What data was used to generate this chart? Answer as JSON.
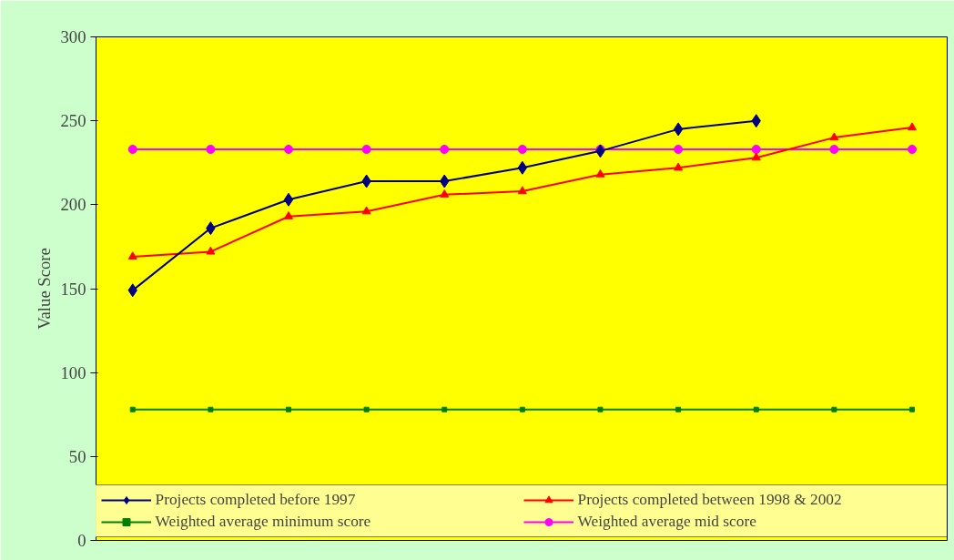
{
  "chart_data": {
    "type": "line",
    "ylabel": "Value Score",
    "categories": [
      null,
      null,
      null,
      null,
      null,
      null,
      null,
      null,
      null,
      null,
      null
    ],
    "series": [
      {
        "name": "Projects completed before 1997",
        "color": "#000080",
        "marker": "diamond",
        "values": [
          149,
          186,
          203,
          214,
          214,
          222,
          232,
          245,
          250,
          null,
          null
        ]
      },
      {
        "name": "Projects completed between 1998 & 2002",
        "color": "#ff0000",
        "marker": "triangle",
        "values": [
          169,
          172,
          193,
          196,
          206,
          208,
          218,
          222,
          228,
          240,
          246
        ]
      },
      {
        "name": "Weighted average minimum score",
        "color": "#008000",
        "marker": "square",
        "values": [
          78,
          78,
          78,
          78,
          78,
          78,
          78,
          78,
          78,
          78,
          78
        ]
      },
      {
        "name": "Weighted average mid score",
        "color": "#ff00ff",
        "marker": "circle",
        "values": [
          233,
          233,
          233,
          233,
          233,
          233,
          233,
          233,
          233,
          233,
          233
        ]
      }
    ],
    "ylim": [
      0,
      300
    ],
    "yticks": [
      0,
      50,
      100,
      150,
      200,
      250,
      300
    ],
    "grid": false,
    "legend": "bottom",
    "tick_labels": "y"
  }
}
